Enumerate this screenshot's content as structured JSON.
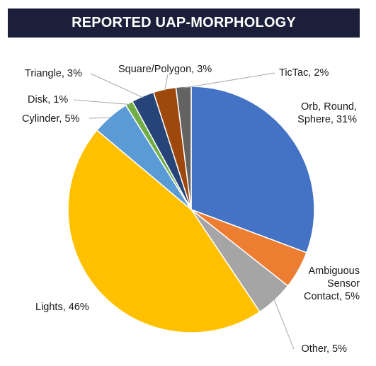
{
  "header": {
    "title": "REPORTED UAP-MORPHOLOGY"
  },
  "chart_data": {
    "type": "pie",
    "title": "REPORTED UAP-MORPHOLOGY",
    "start": "12 o'clock, clockwise",
    "slices": [
      {
        "label": "Orb, Round, Sphere, 31%",
        "name": "Orb, Round, Sphere",
        "value": 31,
        "color": "#4472c4"
      },
      {
        "label": "Ambiguous Sensor Contact, 5%",
        "name": "Ambiguous Sensor Contact",
        "value": 5,
        "color": "#ed7d31"
      },
      {
        "label": "Other, 5%",
        "name": "Other",
        "value": 5,
        "color": "#a5a5a5"
      },
      {
        "label": "Lights, 46%",
        "name": "Lights",
        "value": 46,
        "color": "#ffc000"
      },
      {
        "label": "Cylinder, 5%",
        "name": "Cylinder",
        "value": 5,
        "color": "#5b9bd5"
      },
      {
        "label": "Disk, 1%",
        "name": "Disk",
        "value": 1,
        "color": "#70ad47"
      },
      {
        "label": "Triangle, 3%",
        "name": "Triangle",
        "value": 3,
        "color": "#264478"
      },
      {
        "label": "Square/Polygon, 3%",
        "name": "Square/Polygon",
        "value": 3,
        "color": "#9e480e"
      },
      {
        "label": "TicTac, 2%",
        "name": "TicTac",
        "value": 2,
        "color": "#636363"
      }
    ]
  }
}
